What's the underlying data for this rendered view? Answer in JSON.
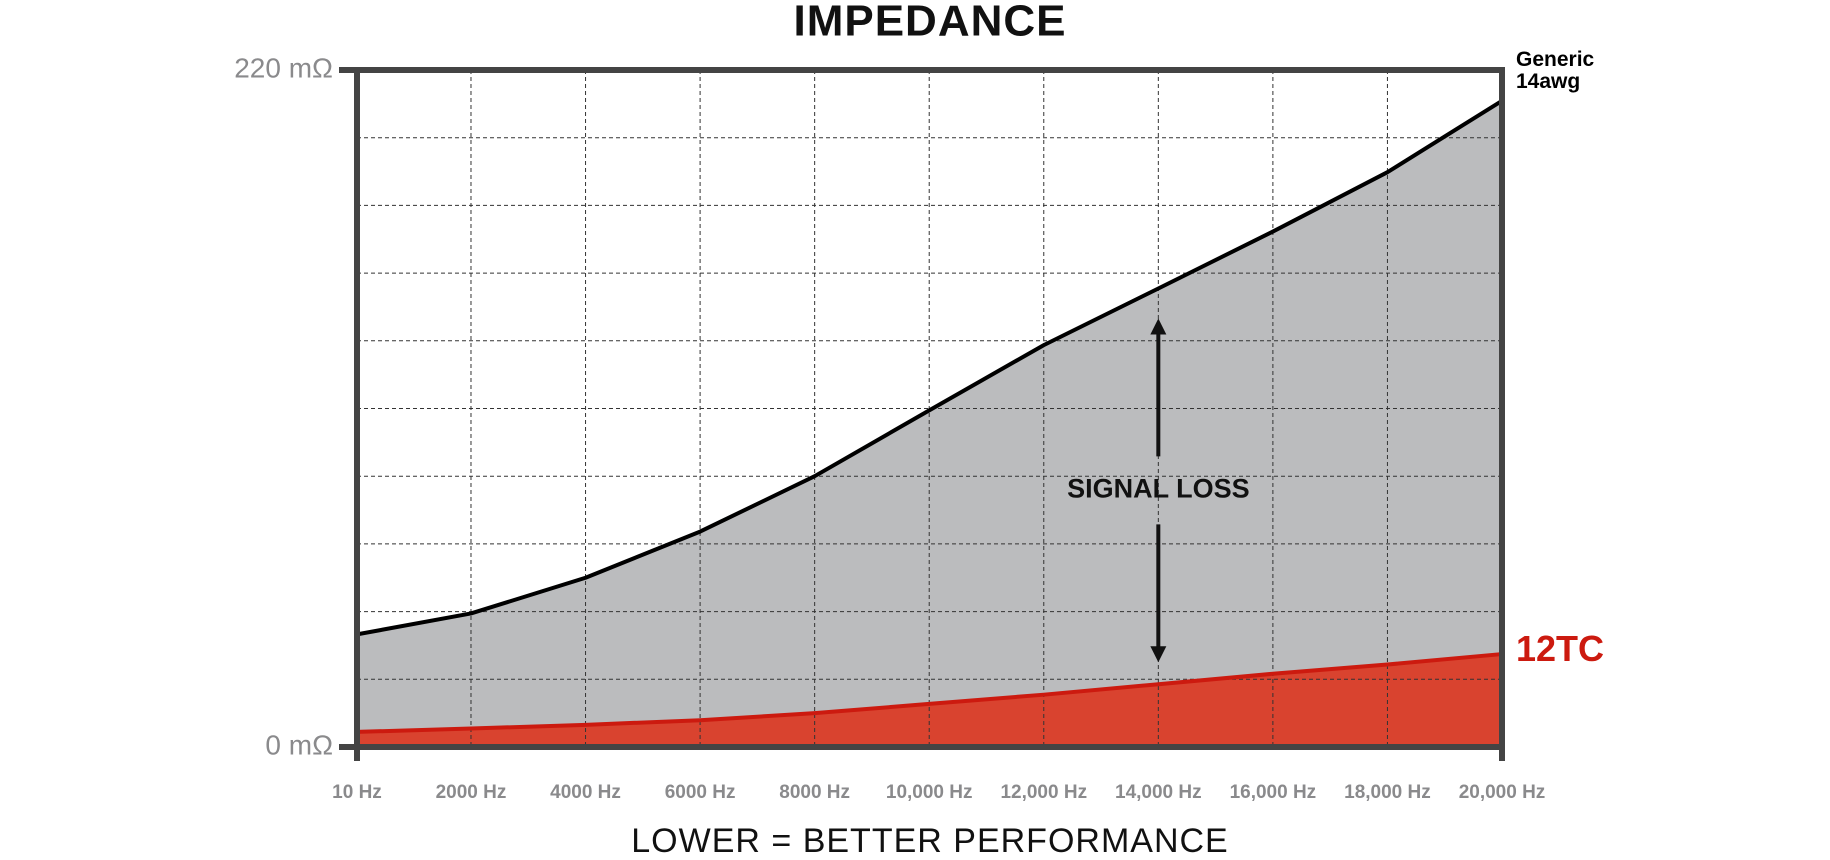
{
  "chart_data": {
    "type": "area",
    "title": "IMPEDANCE",
    "x_label": "LOWER = BETTER PERFORMANCE",
    "x": [
      10,
      2000,
      4000,
      6000,
      8000,
      10000,
      12000,
      14000,
      16000,
      18000,
      20000
    ],
    "xlim": [
      10,
      20000
    ],
    "xticks": [
      {
        "value": 10,
        "label": "10 Hz"
      },
      {
        "value": 2000,
        "label": "2000 Hz"
      },
      {
        "value": 4000,
        "label": "4000 Hz"
      },
      {
        "value": 6000,
        "label": "6000 Hz"
      },
      {
        "value": 8000,
        "label": "8000 Hz"
      },
      {
        "value": 10000,
        "label": "10,000 Hz"
      },
      {
        "value": 12000,
        "label": "12,000 Hz"
      },
      {
        "value": 14000,
        "label": "14,000 Hz"
      },
      {
        "value": 16000,
        "label": "16,000 Hz"
      },
      {
        "value": 18000,
        "label": "18,000 Hz"
      },
      {
        "value": 20000,
        "label": "20,000 Hz"
      }
    ],
    "ylim": [
      0,
      220
    ],
    "yticks": [
      {
        "value": 0,
        "label": "0 mΩ"
      },
      {
        "value": 220,
        "label": "220 mΩ"
      }
    ],
    "ygrid": [
      22,
      44,
      66,
      88,
      110,
      132,
      154,
      176,
      198
    ],
    "grid": true,
    "series": [
      {
        "name": "Generic 14awg",
        "color": "#000000",
        "fill": "#bbbcbe",
        "values": [
          36.6,
          43.4,
          55,
          70,
          88,
          109.4,
          130.6,
          149,
          167.5,
          186.8,
          210
        ]
      },
      {
        "name": "12TC",
        "color": "#cc1a0f",
        "fill": "#d9432f",
        "values": [
          4.9,
          6,
          7.2,
          8.7,
          11,
          14,
          17,
          20.4,
          23.8,
          26.8,
          30.2
        ]
      }
    ],
    "annotation": {
      "text": "SIGNAL LOSS",
      "x": 14000
    }
  }
}
